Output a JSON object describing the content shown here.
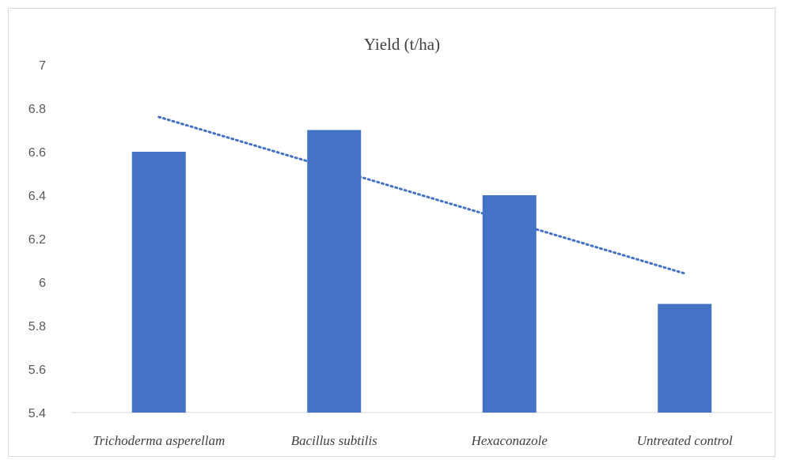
{
  "chart_data": {
    "type": "bar",
    "title": "Yield (t/ha)",
    "categories": [
      "Trichoderma asperellam",
      "Bacillus subtilis",
      "Hexaconazole",
      "Untreated control"
    ],
    "values": [
      6.6,
      6.7,
      6.4,
      5.9
    ],
    "ylim": [
      5.4,
      7
    ],
    "yticks": [
      "5.4",
      "5.6",
      "5.8",
      "6",
      "6.2",
      "6.4",
      "6.6",
      "6.8",
      "7"
    ],
    "trendline": {
      "type": "linear",
      "style": "dotted"
    },
    "xlabel": "",
    "ylabel": "",
    "grid": false,
    "colors": {
      "bar": "#4472C4",
      "trendline": "#4472C4",
      "axis": "#d9d9d9"
    }
  }
}
